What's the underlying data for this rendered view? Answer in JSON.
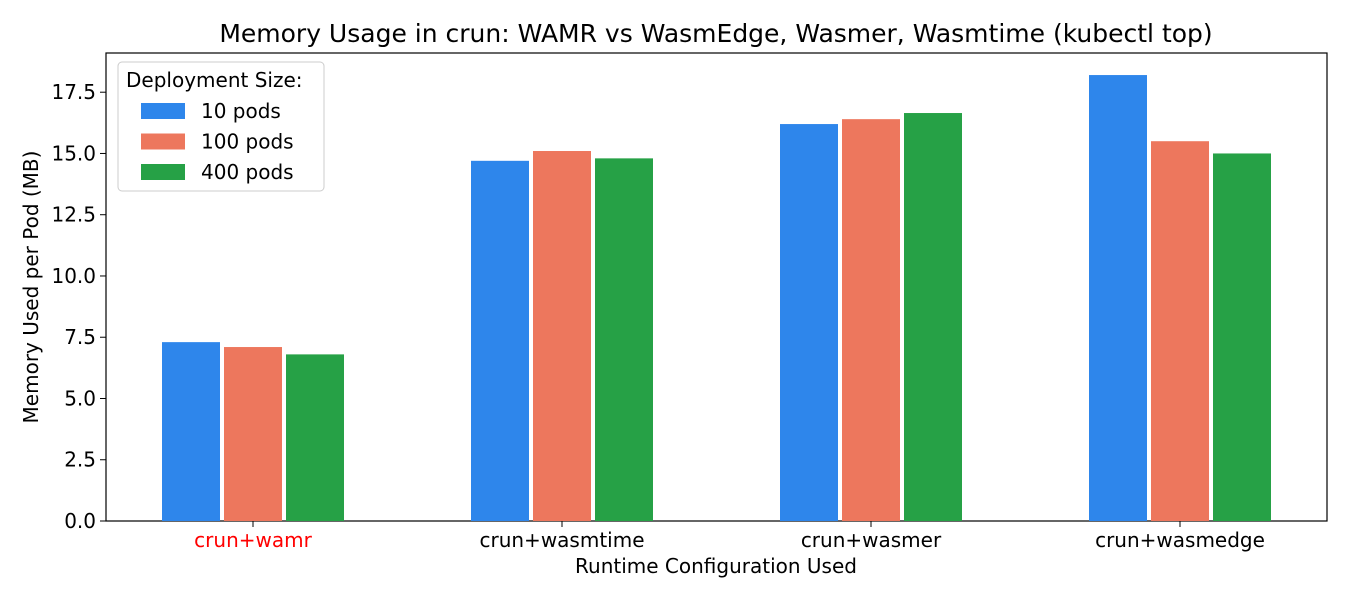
{
  "chart_data": {
    "type": "bar",
    "title": "Memory Usage in crun: WAMR vs WasmEdge, Wasmer, Wasmtime (kubectl top)",
    "xlabel": "Runtime Configuration Used",
    "ylabel": "Memory Used per Pod (MB)",
    "categories": [
      "crun+wamr",
      "crun+wasmtime",
      "crun+wasmer",
      "crun+wasmedge"
    ],
    "highlighted_category": "crun+wamr",
    "highlight_color": "#ff0000",
    "series": [
      {
        "name": "10 pods",
        "color": "#2e86eb",
        "values": [
          7.3,
          14.7,
          16.2,
          18.2
        ]
      },
      {
        "name": "100 pods",
        "color": "#ed775d",
        "values": [
          7.1,
          15.1,
          16.4,
          15.5
        ]
      },
      {
        "name": "400 pods",
        "color": "#26a146",
        "values": [
          6.8,
          14.8,
          16.65,
          15.0
        ]
      }
    ],
    "yticks": [
      "0.0",
      "2.5",
      "5.0",
      "7.5",
      "10.0",
      "12.5",
      "15.0",
      "17.5"
    ],
    "ylim": [
      0,
      19.1
    ],
    "grid": false,
    "legend": {
      "title": "Deployment Size:",
      "placement": "top-left"
    }
  }
}
